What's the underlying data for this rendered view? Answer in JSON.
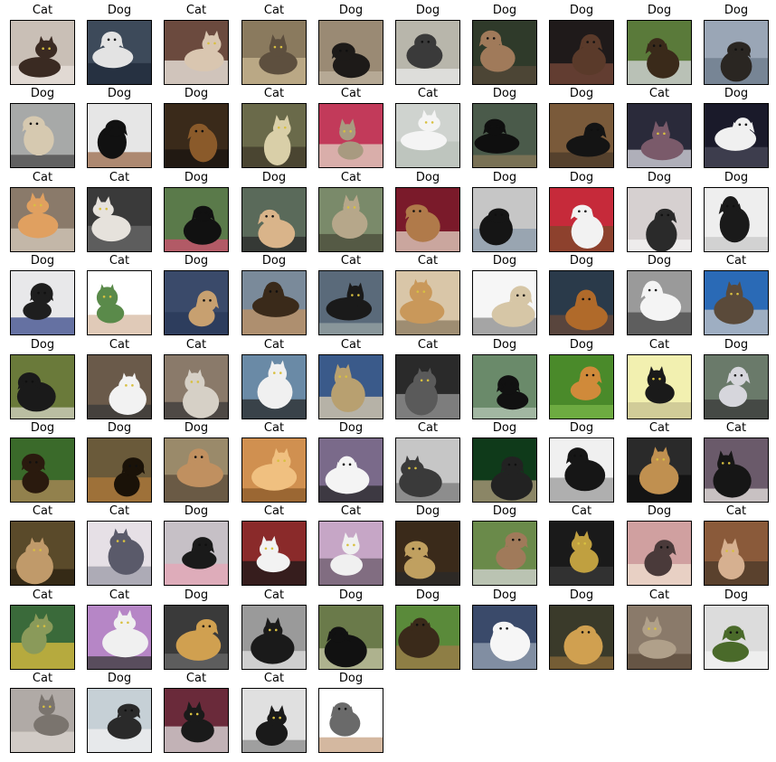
{
  "labels": [
    "Cat",
    "Dog",
    "Cat",
    "Cat",
    "Dog",
    "Dog",
    "Dog",
    "Dog",
    "Dog",
    "Dog",
    "Dog",
    "Dog",
    "Dog",
    "Cat",
    "Cat",
    "Cat",
    "Dog",
    "Dog",
    "Cat",
    "Dog",
    "Cat",
    "Cat",
    "Dog",
    "Dog",
    "Cat",
    "Dog",
    "Dog",
    "Dog",
    "Dog",
    "Dog",
    "Dog",
    "Cat",
    "Dog",
    "Dog",
    "Cat",
    "Cat",
    "Dog",
    "Dog",
    "Dog",
    "Cat",
    "Dog",
    "Cat",
    "Cat",
    "Cat",
    "Cat",
    "Cat",
    "Dog",
    "Dog",
    "Cat",
    "Dog",
    "Dog",
    "Dog",
    "Dog",
    "Cat",
    "Dog",
    "Cat",
    "Dog",
    "Dog",
    "Cat",
    "Cat",
    "Cat",
    "Cat",
    "Dog",
    "Cat",
    "Cat",
    "Dog",
    "Dog",
    "Cat",
    "Dog",
    "Cat",
    "Cat",
    "Cat",
    "Dog",
    "Cat",
    "Dog",
    "Dog",
    "Dog",
    "Dog",
    "Cat",
    "Dog",
    "Cat",
    "Dog",
    "Cat",
    "Cat",
    "Dog"
  ],
  "palettes": [
    [
      "#c9bfb6",
      "#3a2a22",
      "#e8e2dc"
    ],
    [
      "#3d4a5a",
      "#e3e3e3",
      "#1f2a3a"
    ],
    [
      "#6b4a3e",
      "#d9c6b0",
      "#f2ede6"
    ],
    [
      "#8a7a5e",
      "#5d4f3e",
      "#c9b893"
    ],
    [
      "#9a8a74",
      "#1d1a18",
      "#bfb3a0"
    ],
    [
      "#b8b6ab",
      "#3a3a3a",
      "#eaeaea"
    ],
    [
      "#2f3a2a",
      "#a07a5a",
      "#574a3a"
    ],
    [
      "#1f1a1a",
      "#5a3a2a",
      "#7a4a3a"
    ],
    [
      "#5a7a3a",
      "#3a2a1a",
      "#d9d9e0"
    ],
    [
      "#9aa6b6",
      "#2a2622",
      "#6b7a8a"
    ],
    [
      "#a7a9a8",
      "#d6c9b0",
      "#4a4a4a"
    ],
    [
      "#e6e6e6",
      "#111111",
      "#9a6a4a"
    ],
    [
      "#3a2a1a",
      "#8a5a2a",
      "#1a1410"
    ],
    [
      "#6a6a4a",
      "#d9cfa8",
      "#403a2a"
    ],
    [
      "#c23a5a",
      "#a89a80",
      "#e0d6c6"
    ],
    [
      "#cfd3cf",
      "#f4f4f4",
      "#b8c0b8"
    ],
    [
      "#4a5a4a",
      "#0f0f0f",
      "#8a7a5a"
    ],
    [
      "#7a5a3a",
      "#141414",
      "#4a3a2a"
    ],
    [
      "#2a2a3a",
      "#7a5a6a",
      "#dcdce4"
    ],
    [
      "#1a1a2a",
      "#f0f0f0",
      "#4a4a5a"
    ],
    [
      "#8a7a6a",
      "#e0a060",
      "#d6ccbe"
    ],
    [
      "#3a3a3a",
      "#e6e2dc",
      "#6a6a6a"
    ],
    [
      "#5a7a4a",
      "#111111",
      "#d05070"
    ],
    [
      "#5a6a5a",
      "#d9b48a",
      "#2a2a2a"
    ],
    [
      "#7a8a6a",
      "#b6a78a",
      "#4a4a3a"
    ],
    [
      "#7a1a2a",
      "#b07a4a",
      "#e6d6c6"
    ],
    [
      "#c6c6c6",
      "#151515",
      "#8a9aaa"
    ],
    [
      "#c62a3a",
      "#f2f2f2",
      "#7a4a2a"
    ],
    [
      "#d6d0d0",
      "#2a2a2a",
      "#f6f6f6"
    ],
    [
      "#eeeeee",
      "#1a1a1a",
      "#c8c8c8"
    ],
    [
      "#e8e8ea",
      "#1e1e1e",
      "#3a4a8a"
    ],
    [
      "#ffffff",
      "#5a8a4a",
      "#d6b8a0"
    ],
    [
      "#3a4a6a",
      "#c7a070",
      "#2a3a5a"
    ],
    [
      "#7a8a9a",
      "#3a2a1a",
      "#c09060"
    ],
    [
      "#5a6a7a",
      "#1a1a1a",
      "#9aa6a6"
    ],
    [
      "#d9c6a8",
      "#c9985a",
      "#8a7a60"
    ],
    [
      "#f6f6f6",
      "#d6c6a6",
      "#8a8a8a"
    ],
    [
      "#2a3a4a",
      "#b06a2a",
      "#6a4a3a"
    ],
    [
      "#9a9a9a",
      "#f4f4f4",
      "#4a4a4a"
    ],
    [
      "#2a6ab6",
      "#5a4a3a",
      "#c6c6c6"
    ],
    [
      "#6a7a3a",
      "#1a1a1a",
      "#d6d6c6"
    ],
    [
      "#6a5a4a",
      "#f2f2f2",
      "#3a3a3a"
    ],
    [
      "#8a7a6a",
      "#d6d0c6",
      "#3a3a3a"
    ],
    [
      "#6a8aa6",
      "#f0f0f0",
      "#2a2a2a"
    ],
    [
      "#3a5a8a",
      "#b8a070",
      "#e0d0b0"
    ],
    [
      "#2a2a2a",
      "#5a5a5a",
      "#9a9a9a"
    ],
    [
      "#6a8a6a",
      "#111111",
      "#b6c6b6"
    ],
    [
      "#4a8a2a",
      "#d08a3a",
      "#7ab64a"
    ],
    [
      "#f2f0b0",
      "#1a1a1a",
      "#c6c090"
    ],
    [
      "#6a7a6a",
      "#d6d6dc",
      "#3a3a3a"
    ],
    [
      "#3a6a2a",
      "#2a1a0e",
      "#b08a5a"
    ],
    [
      "#6a5a3a",
      "#1a1208",
      "#b07a3a"
    ],
    [
      "#9a8a6a",
      "#c09060",
      "#5a4a3a"
    ],
    [
      "#d09050",
      "#f0c080",
      "#8a5a2a"
    ],
    [
      "#7a6a8a",
      "#f4f4f4",
      "#2a2a2a"
    ],
    [
      "#c6c6c6",
      "#3a3a3a",
      "#7a7a7a"
    ],
    [
      "#0f3a1a",
      "#222222",
      "#b6a080"
    ],
    [
      "#f0f0f0",
      "#161616",
      "#9a9a9a"
    ],
    [
      "#2a2a2a",
      "#c09050",
      "#0e0e0e"
    ],
    [
      "#6a5a6a",
      "#161616",
      "#e8e4e0"
    ],
    [
      "#5a4a2a",
      "#c09a6a",
      "#2a2010"
    ],
    [
      "#e6e0e6",
      "#5a5a6a",
      "#9a9aa6"
    ],
    [
      "#c6c0c6",
      "#1a1a1a",
      "#e6a6b6"
    ],
    [
      "#8a2a2a",
      "#f2f2f2",
      "#1a1a1a"
    ],
    [
      "#c6a6c6",
      "#f0f0f0",
      "#6a5a6a"
    ],
    [
      "#3a2a1a",
      "#c0a060",
      "#2a2a2a"
    ],
    [
      "#6a8a4a",
      "#a07a5a",
      "#d6d6d6"
    ],
    [
      "#1a1a1a",
      "#c0a040",
      "#3a3a3a"
    ],
    [
      "#d0a0a0",
      "#4a3a3a",
      "#f0e0d0"
    ],
    [
      "#8a5a3a",
      "#d6b090",
      "#4a3a2a"
    ],
    [
      "#3a6a3a",
      "#8a9a5a",
      "#e0c040"
    ],
    [
      "#b686c6",
      "#f0f0f0",
      "#3a3a3a"
    ],
    [
      "#3a3a3a",
      "#d0a050",
      "#6a6a6a"
    ],
    [
      "#9a9a9a",
      "#1a1a1a",
      "#e0e0e0"
    ],
    [
      "#6a7a4a",
      "#111111",
      "#c6c6a6"
    ],
    [
      "#5a8a3a",
      "#3a2a1a",
      "#a07a4a"
    ],
    [
      "#3a4a6a",
      "#f6f6f6",
      "#9aa6b6"
    ],
    [
      "#3a3a2a",
      "#d0a050",
      "#8a6a3a"
    ],
    [
      "#8a7a6a",
      "#b0a08a",
      "#5a4a3a"
    ],
    [
      "#dcdcdc",
      "#4a6a2a",
      "#f4f4f4"
    ],
    [
      "#b0aaa6",
      "#7a746e",
      "#dcd6d0"
    ],
    [
      "#c6d0d6",
      "#2a2a2a",
      "#f2f2f2"
    ],
    [
      "#6a2a3a",
      "#1a1a1a",
      "#e0e0e0"
    ],
    [
      "#e0e0e0",
      "#1a1a1a",
      "#8a8a8a"
    ],
    [
      "#ffffff",
      "#6a6a6a",
      "#c6a080"
    ]
  ]
}
